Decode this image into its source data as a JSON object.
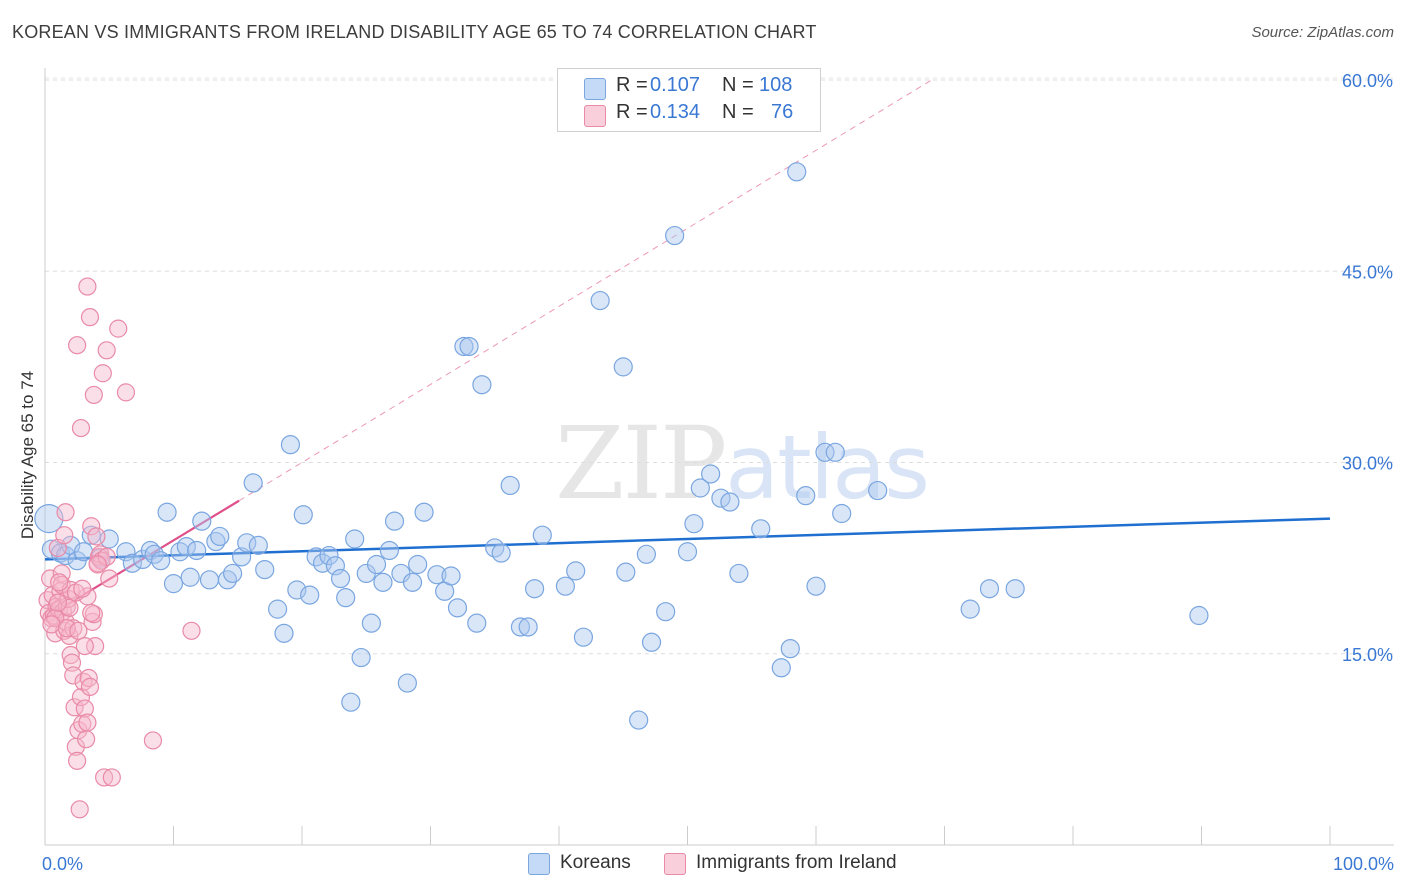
{
  "title": "KOREAN VS IMMIGRANTS FROM IRELAND DISABILITY AGE 65 TO 74 CORRELATION CHART",
  "source": "Source: ZipAtlas.com",
  "watermark": {
    "zip": "ZIP",
    "atlas": "atlas"
  },
  "legend": {
    "r_label": "R =",
    "n_label": "N =",
    "rows": [
      {
        "r": "0.107",
        "n": "108"
      },
      {
        "r": "0.134",
        "n": "76"
      }
    ]
  },
  "colors": {
    "blue_fill": "#aac8f0",
    "blue_stroke": "#7aa6e0",
    "blue_line": "#1f6fd0",
    "pink_fill": "#f6b8cc",
    "pink_stroke": "#e88aa8",
    "pink_line": "#e0508a",
    "tick_color": "#3a78d4"
  },
  "chart_data": {
    "type": "scatter",
    "title": "KOREAN VS IMMIGRANTS FROM IRELAND DISABILITY AGE 65 TO 74 CORRELATION CHART",
    "xlabel": "",
    "ylabel": "Disability Age 65 to 74",
    "xlim": [
      0,
      100
    ],
    "ylim": [
      0,
      60
    ],
    "x_tick_labels": [
      "0.0%",
      "100.0%"
    ],
    "y_ticks": [
      15,
      30,
      45,
      60
    ],
    "y_tick_labels": [
      "15.0%",
      "30.0%",
      "45.0%",
      "60.0%"
    ],
    "grid": true,
    "legend_position": "top-center",
    "series": [
      {
        "name": "Koreans",
        "r": 0.107,
        "n": 108,
        "trend": {
          "x": [
            0,
            100
          ],
          "y": [
            22.4,
            25.6
          ]
        },
        "points": [
          [
            0.3,
            25.6
          ],
          [
            0.5,
            23.2
          ],
          [
            1.2,
            22.9
          ],
          [
            1.6,
            22.7
          ],
          [
            2.0,
            23.5
          ],
          [
            2.5,
            22.3
          ],
          [
            3.0,
            23.0
          ],
          [
            3.6,
            24.3
          ],
          [
            4.3,
            22.5
          ],
          [
            5.0,
            24.0
          ],
          [
            6.3,
            23.0
          ],
          [
            6.8,
            22.1
          ],
          [
            7.6,
            22.4
          ],
          [
            8.2,
            23.1
          ],
          [
            8.5,
            22.8
          ],
          [
            9.0,
            22.3
          ],
          [
            9.5,
            26.1
          ],
          [
            10.0,
            20.5
          ],
          [
            10.5,
            23.0
          ],
          [
            11.0,
            23.4
          ],
          [
            11.3,
            21.0
          ],
          [
            11.8,
            23.1
          ],
          [
            12.2,
            25.4
          ],
          [
            12.8,
            20.8
          ],
          [
            13.3,
            23.8
          ],
          [
            13.6,
            24.2
          ],
          [
            14.2,
            20.8
          ],
          [
            14.6,
            21.3
          ],
          [
            15.3,
            22.6
          ],
          [
            15.7,
            23.7
          ],
          [
            16.2,
            28.4
          ],
          [
            16.6,
            23.5
          ],
          [
            17.1,
            21.6
          ],
          [
            18.1,
            18.5
          ],
          [
            18.6,
            16.6
          ],
          [
            19.1,
            31.4
          ],
          [
            19.6,
            20.0
          ],
          [
            20.1,
            25.9
          ],
          [
            20.6,
            19.6
          ],
          [
            21.1,
            22.6
          ],
          [
            21.6,
            22.1
          ],
          [
            22.1,
            22.7
          ],
          [
            22.6,
            21.9
          ],
          [
            23.0,
            20.9
          ],
          [
            23.4,
            19.4
          ],
          [
            23.8,
            11.2
          ],
          [
            24.1,
            24.0
          ],
          [
            24.6,
            14.7
          ],
          [
            25.0,
            21.3
          ],
          [
            25.4,
            17.4
          ],
          [
            25.8,
            22.0
          ],
          [
            26.3,
            20.6
          ],
          [
            26.8,
            23.1
          ],
          [
            27.2,
            25.4
          ],
          [
            27.7,
            21.3
          ],
          [
            28.2,
            12.7
          ],
          [
            28.6,
            20.6
          ],
          [
            29.0,
            22.0
          ],
          [
            29.5,
            26.1
          ],
          [
            30.5,
            21.2
          ],
          [
            31.1,
            19.9
          ],
          [
            31.6,
            21.1
          ],
          [
            32.1,
            18.6
          ],
          [
            32.6,
            39.1
          ],
          [
            33.0,
            39.1
          ],
          [
            33.6,
            17.4
          ],
          [
            34.0,
            36.1
          ],
          [
            35.0,
            23.3
          ],
          [
            35.5,
            22.9
          ],
          [
            36.2,
            28.2
          ],
          [
            37.0,
            17.1
          ],
          [
            37.6,
            17.1
          ],
          [
            38.1,
            20.1
          ],
          [
            38.7,
            24.3
          ],
          [
            40.5,
            20.3
          ],
          [
            41.3,
            21.5
          ],
          [
            41.9,
            16.3
          ],
          [
            43.2,
            42.7
          ],
          [
            45.0,
            37.5
          ],
          [
            45.2,
            21.4
          ],
          [
            46.2,
            9.8
          ],
          [
            46.8,
            22.8
          ],
          [
            47.2,
            15.9
          ],
          [
            48.3,
            18.3
          ],
          [
            49.0,
            47.8
          ],
          [
            50.0,
            23.0
          ],
          [
            50.5,
            25.2
          ],
          [
            51.0,
            28.0
          ],
          [
            51.8,
            29.1
          ],
          [
            52.6,
            27.2
          ],
          [
            53.3,
            26.9
          ],
          [
            54.0,
            21.3
          ],
          [
            55.7,
            24.8
          ],
          [
            57.3,
            13.9
          ],
          [
            58.0,
            15.4
          ],
          [
            58.5,
            52.8
          ],
          [
            59.2,
            27.4
          ],
          [
            60.0,
            20.3
          ],
          [
            60.7,
            30.8
          ],
          [
            61.5,
            30.8
          ],
          [
            62.0,
            26.0
          ],
          [
            64.8,
            27.8
          ],
          [
            72.0,
            18.5
          ],
          [
            73.5,
            20.1
          ],
          [
            75.5,
            20.1
          ],
          [
            89.8,
            18.0
          ]
        ]
      },
      {
        "name": "Immigrants from Ireland",
        "r": 0.134,
        "n": 76,
        "trend": {
          "x": [
            0,
            15.1
          ],
          "y": [
            17.8,
            27.0
          ],
          "dashed_to": [
            69.0,
            60.0
          ]
        },
        "points": [
          [
            0.2,
            19.2
          ],
          [
            0.3,
            18.2
          ],
          [
            0.4,
            20.9
          ],
          [
            0.5,
            17.8
          ],
          [
            0.6,
            19.6
          ],
          [
            0.7,
            18.0
          ],
          [
            0.8,
            16.6
          ],
          [
            0.9,
            18.7
          ],
          [
            1.0,
            23.3
          ],
          [
            1.1,
            18.5
          ],
          [
            1.2,
            19.9
          ],
          [
            1.3,
            21.3
          ],
          [
            1.4,
            18.3
          ],
          [
            1.5,
            16.8
          ],
          [
            1.6,
            17.5
          ],
          [
            1.7,
            18.7
          ],
          [
            1.8,
            19.3
          ],
          [
            1.9,
            16.4
          ],
          [
            2.0,
            14.9
          ],
          [
            2.1,
            14.3
          ],
          [
            2.2,
            13.3
          ],
          [
            2.3,
            10.8
          ],
          [
            2.4,
            7.7
          ],
          [
            2.5,
            6.6
          ],
          [
            2.6,
            9.0
          ],
          [
            2.7,
            2.8
          ],
          [
            2.8,
            11.6
          ],
          [
            2.9,
            9.5
          ],
          [
            3.0,
            12.8
          ],
          [
            3.1,
            10.7
          ],
          [
            3.2,
            8.3
          ],
          [
            3.3,
            9.6
          ],
          [
            3.4,
            13.1
          ],
          [
            3.5,
            12.4
          ],
          [
            3.6,
            25.0
          ],
          [
            3.7,
            17.5
          ],
          [
            3.8,
            18.1
          ],
          [
            3.9,
            15.6
          ],
          [
            4.0,
            24.2
          ],
          [
            4.1,
            22.1
          ],
          [
            4.2,
            22.6
          ],
          [
            4.3,
            22.8
          ],
          [
            4.4,
            22.3
          ],
          [
            4.6,
            5.3
          ],
          [
            4.8,
            22.6
          ],
          [
            5.0,
            20.9
          ],
          [
            1.6,
            26.1
          ],
          [
            2.5,
            39.2
          ],
          [
            2.8,
            32.7
          ],
          [
            3.3,
            43.8
          ],
          [
            3.5,
            41.4
          ],
          [
            3.8,
            35.3
          ],
          [
            4.5,
            37.0
          ],
          [
            4.8,
            38.8
          ],
          [
            5.7,
            40.5
          ],
          [
            6.3,
            35.5
          ],
          [
            5.2,
            5.3
          ],
          [
            8.4,
            8.2
          ],
          [
            11.4,
            16.8
          ],
          [
            1.5,
            24.3
          ],
          [
            1.3,
            20.4
          ],
          [
            2.0,
            20.0
          ],
          [
            2.2,
            17.0
          ],
          [
            3.3,
            19.5
          ],
          [
            3.6,
            18.2
          ],
          [
            0.8,
            17.8
          ],
          [
            1.1,
            20.6
          ],
          [
            1.9,
            18.6
          ],
          [
            2.4,
            19.8
          ],
          [
            2.9,
            20.1
          ],
          [
            0.5,
            17.3
          ],
          [
            1.7,
            17.0
          ],
          [
            2.6,
            16.8
          ],
          [
            3.1,
            15.6
          ],
          [
            4.1,
            22.0
          ],
          [
            1.0,
            19.0
          ]
        ]
      }
    ]
  },
  "bottom_legend": [
    "Koreans",
    "Immigrants from Ireland"
  ]
}
